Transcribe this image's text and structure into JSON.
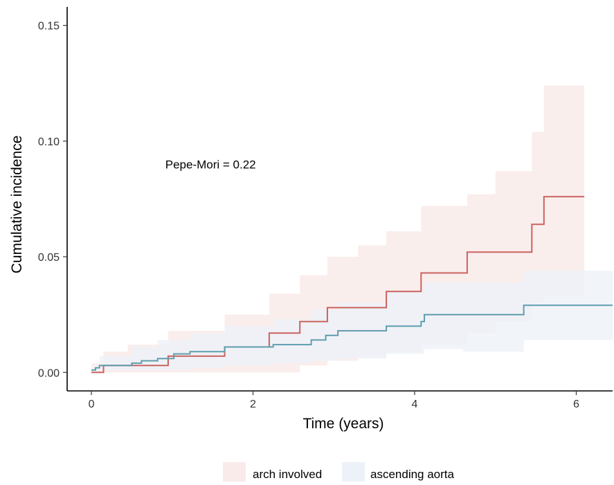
{
  "chart_data": {
    "type": "line",
    "subtype": "step-cumulative-incidence-with-confidence-bands",
    "xlabel": "Time (years)",
    "ylabel": "Cumulative incidence",
    "xlim": [
      -0.3,
      6.45
    ],
    "ylim": [
      -0.008,
      0.158
    ],
    "x_ticks": [
      0,
      2,
      4,
      6
    ],
    "x_tick_labels": [
      "0",
      "2",
      "4",
      "6"
    ],
    "y_ticks": [
      0,
      0.05,
      0.1,
      0.15
    ],
    "y_tick_labels": [
      "0.00",
      "0.05",
      "0.10",
      "0.15"
    ],
    "grid": false,
    "legend_position": "bottom",
    "annotation": {
      "text": "Pepe-Mori = 0.22",
      "x": 1.0,
      "y": 0.09
    },
    "series": [
      {
        "name": "arch involved",
        "line_color": "#c9625e",
        "band_color": "#f9ebea",
        "x": [
          0,
          0.15,
          0.45,
          0.95,
          1.65,
          2.2,
          2.58,
          2.92,
          3.65,
          4.08,
          4.65,
          5.45,
          5.6,
          6.1
        ],
        "y": [
          0,
          0.003,
          0.003,
          0.007,
          0.011,
          0.017,
          0.022,
          0.028,
          0.035,
          0.043,
          0.052,
          0.064,
          0.076,
          0.076
        ],
        "band_x": [
          0,
          0.15,
          0.45,
          0.95,
          1.65,
          2.2,
          2.58,
          2.92,
          3.3,
          3.65,
          4.08,
          4.65,
          5.0,
          5.45,
          5.6,
          6.1
        ],
        "band_upper": [
          0.004,
          0.009,
          0.012,
          0.018,
          0.025,
          0.034,
          0.042,
          0.05,
          0.055,
          0.061,
          0.072,
          0.077,
          0.087,
          0.104,
          0.124,
          0.124
        ],
        "band_lower": [
          0,
          0,
          0,
          0,
          0,
          0,
          0.003,
          0.005,
          0.007,
          0.009,
          0.012,
          0.017,
          0.022,
          0.03,
          0.033,
          0.033
        ]
      },
      {
        "name": "ascending aorta",
        "line_color": "#5d9daf",
        "band_color": "#edf1f8",
        "x": [
          0,
          0.05,
          0.1,
          0.5,
          0.62,
          0.82,
          1.02,
          1.22,
          1.65,
          2.25,
          2.72,
          2.9,
          3.05,
          3.65,
          4.08,
          4.12,
          5.35,
          6.45
        ],
        "y": [
          0.001,
          0.002,
          0.003,
          0.004,
          0.005,
          0.006,
          0.008,
          0.009,
          0.011,
          0.012,
          0.014,
          0.016,
          0.018,
          0.02,
          0.022,
          0.025,
          0.029,
          0.029
        ],
        "band_x": [
          0,
          0.1,
          0.5,
          0.82,
          1.22,
          1.65,
          2.25,
          2.72,
          3.05,
          3.65,
          4.12,
          4.6,
          5.35,
          6.45
        ],
        "band_upper": [
          0.002,
          0.007,
          0.011,
          0.014,
          0.017,
          0.02,
          0.023,
          0.027,
          0.03,
          0.035,
          0.039,
          0.039,
          0.044,
          0.044
        ],
        "band_lower": [
          0,
          0.001,
          0.001,
          0.001,
          0.002,
          0.003,
          0.004,
          0.005,
          0.006,
          0.008,
          0.01,
          0.009,
          0.014,
          0.014
        ]
      }
    ]
  }
}
